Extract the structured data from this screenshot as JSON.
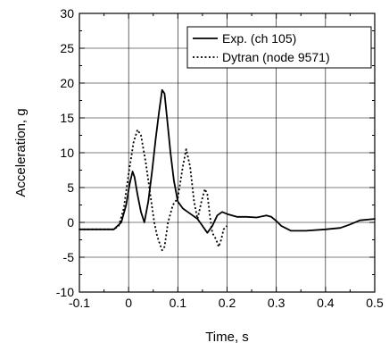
{
  "chart_data": {
    "type": "line",
    "xlabel": "Time, s",
    "ylabel": "Acceleration, g",
    "xlim": [
      -0.1,
      0.5
    ],
    "ylim": [
      -10,
      30
    ],
    "xticks": [
      -0.1,
      0,
      0.1,
      0.2,
      0.3,
      0.4,
      0.5
    ],
    "xtick_labels": [
      "-0.1",
      "0",
      "0.1",
      "0.2",
      "0.3",
      "0.4",
      "0.5"
    ],
    "yticks": [
      -10,
      -5,
      0,
      5,
      10,
      15,
      20,
      25,
      30
    ],
    "ytick_labels": [
      "-10",
      "-5",
      "0",
      "5",
      "10",
      "15",
      "20",
      "25",
      "30"
    ],
    "grid": true,
    "legend_position": "top-right",
    "series": [
      {
        "name": "Exp. (ch 105)",
        "style": "solid",
        "color": "#000000",
        "x": [
          -0.1,
          -0.03,
          -0.015,
          -0.005,
          0.002,
          0.008,
          0.012,
          0.018,
          0.025,
          0.032,
          0.04,
          0.048,
          0.055,
          0.062,
          0.068,
          0.073,
          0.078,
          0.085,
          0.092,
          0.1,
          0.11,
          0.12,
          0.13,
          0.14,
          0.15,
          0.16,
          0.17,
          0.18,
          0.19,
          0.2,
          0.22,
          0.24,
          0.26,
          0.28,
          0.29,
          0.3,
          0.31,
          0.33,
          0.36,
          0.4,
          0.43,
          0.45,
          0.47,
          0.5
        ],
        "y": [
          -1,
          -1,
          0,
          2.5,
          5.5,
          7.3,
          6.5,
          4,
          1.5,
          0,
          3,
          7.5,
          12,
          16,
          19,
          18.5,
          15,
          10,
          6,
          3,
          2,
          1.5,
          1,
          0.5,
          -0.5,
          -1.5,
          -0.5,
          1,
          1.5,
          1.2,
          0.8,
          0.8,
          0.7,
          1,
          0.8,
          0.2,
          -0.5,
          -1.2,
          -1.2,
          -1,
          -0.8,
          -0.3,
          0.3,
          0.5
        ]
      },
      {
        "name": "Dytran (node 9571)",
        "style": "dotted",
        "color": "#000000",
        "x": [
          -0.1,
          -0.03,
          -0.02,
          -0.01,
          0,
          0.01,
          0.018,
          0.025,
          0.035,
          0.045,
          0.052,
          0.058,
          0.063,
          0.068,
          0.073,
          0.08,
          0.09,
          0.1,
          0.11,
          0.117,
          0.125,
          0.133,
          0.14,
          0.148,
          0.155,
          0.16,
          0.165,
          0.17,
          0.178,
          0.183,
          0.188,
          0.193,
          0.2
        ],
        "y": [
          -1,
          -1,
          -0.5,
          2,
          7,
          11.5,
          13.3,
          12.5,
          8.5,
          3.5,
          0,
          -2,
          -3,
          -4,
          -3.5,
          0,
          2.5,
          3.5,
          8,
          10.5,
          8,
          3,
          0.5,
          3,
          4.8,
          4,
          1,
          -1.5,
          -2.5,
          -3.5,
          -2.5,
          -1,
          -0.5
        ]
      }
    ]
  }
}
